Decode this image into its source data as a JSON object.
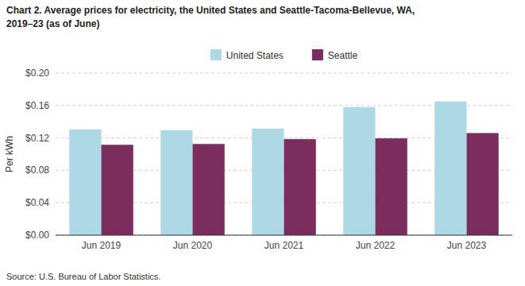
{
  "chart_data": {
    "type": "bar",
    "title": "Chart 2. Average prices for electricity, the United States and Seattle-Tacoma-Bellevue, WA,",
    "subtitle": "2019–23 (as of June)",
    "ylabel": "Per kWh",
    "annotations": [
      "Source: U.S. Bureau of Labor Statistics."
    ],
    "categories": [
      "Jun 2019",
      "Jun 2020",
      "Jun 2021",
      "Jun 2022",
      "Jun 2023"
    ],
    "series": [
      {
        "name": "United States",
        "color": "#ADD8E6",
        "values": [
          0.1305,
          0.1295,
          0.1315,
          0.158,
          0.165
        ]
      },
      {
        "name": "Seattle",
        "color": "#7B2D5E",
        "values": [
          0.1115,
          0.1125,
          0.1185,
          0.1195,
          0.126
        ]
      }
    ],
    "ylim": [
      0,
      0.2
    ],
    "yticks": [
      {
        "value": 0.0,
        "label": "$0.00"
      },
      {
        "value": 0.04,
        "label": "$0.04"
      },
      {
        "value": 0.08,
        "label": "$0.08"
      },
      {
        "value": 0.12,
        "label": "$0.12"
      },
      {
        "value": 0.16,
        "label": "$0.16"
      },
      {
        "value": 0.2,
        "label": "$0.20"
      }
    ],
    "grid": true,
    "legend": "top"
  }
}
